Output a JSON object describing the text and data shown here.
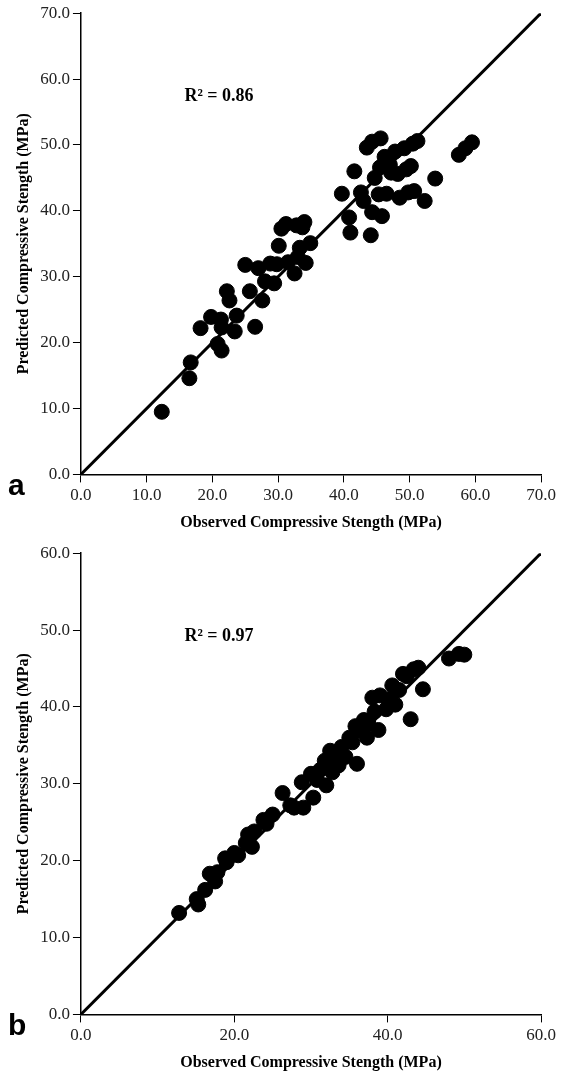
{
  "chart_data": [
    {
      "type": "scatter",
      "xlabel": "Observed Compressive Stength (MPa)",
      "ylabel": "Predicted Compressive Stength (MPa)",
      "annotations": [
        "R² = 0.86",
        "a"
      ],
      "xlim": [
        0,
        70
      ],
      "ylim": [
        0,
        70
      ],
      "xticks": [
        {
          "value": 0,
          "label": "0.0"
        },
        {
          "value": 10,
          "label": "10.0"
        },
        {
          "value": 20,
          "label": "20.0"
        },
        {
          "value": 30,
          "label": "30.0"
        },
        {
          "value": 40,
          "label": "40.0"
        },
        {
          "value": 50,
          "label": "50.0"
        },
        {
          "value": 60,
          "label": "60.0"
        },
        {
          "value": 70,
          "label": "70.0"
        }
      ],
      "yticks": [
        {
          "value": 0,
          "label": "0.0"
        },
        {
          "value": 10,
          "label": "10.0"
        },
        {
          "value": 20,
          "label": "20.0"
        },
        {
          "value": 30,
          "label": "30.0"
        },
        {
          "value": 40,
          "label": "40.0"
        },
        {
          "value": 50,
          "label": "50.0"
        },
        {
          "value": 60,
          "label": "60.0"
        },
        {
          "value": 70,
          "label": "70.0"
        }
      ],
      "grid": false,
      "legend": false,
      "marker": "circle",
      "series": [
        {
          "type": "scatter",
          "color": "#000000",
          "x": [
            12.3,
            16.5,
            16.7,
            18.2,
            19.8,
            20.8,
            21.4,
            21.3,
            21.4,
            22.2,
            22.6,
            23.4,
            23.7,
            25.0,
            25.7,
            26.5,
            27.0,
            27.6,
            28.0,
            28.8,
            29.4,
            29.8,
            30.1,
            30.5,
            31.2,
            31.5,
            32.5,
            32.8,
            33.0,
            33.3,
            33.7,
            34.0,
            34.2,
            34.9,
            39.7,
            40.8,
            41.0,
            41.6,
            42.6,
            43.0,
            43.5,
            44.1,
            44.3,
            44.7,
            44.3,
            45.3,
            45.6,
            45.5,
            45.8,
            46.2,
            46.5,
            47.0,
            47.2,
            47.8,
            48.2,
            48.5,
            49.2,
            49.5,
            49.8,
            50.2,
            50.5,
            50.7,
            51.2,
            52.3,
            53.9,
            57.5,
            58.5,
            59.5
          ],
          "values": [
            9.5,
            14.6,
            17.0,
            22.2,
            23.9,
            19.8,
            18.8,
            23.5,
            22.3,
            27.8,
            26.4,
            21.7,
            24.1,
            31.8,
            27.8,
            22.4,
            31.3,
            26.4,
            29.3,
            32.0,
            29.0,
            31.9,
            34.7,
            37.3,
            38.0,
            32.2,
            30.5,
            37.8,
            33.0,
            34.4,
            37.5,
            38.3,
            32.1,
            35.1,
            42.6,
            39.0,
            36.7,
            46.0,
            42.8,
            41.5,
            49.6,
            36.3,
            50.5,
            45.0,
            39.8,
            42.5,
            51.0,
            46.6,
            39.2,
            48.2,
            42.6,
            47.0,
            45.8,
            49.0,
            45.6,
            42.0,
            49.5,
            46.3,
            42.8,
            46.8,
            50.2,
            43.0,
            50.6,
            41.5,
            44.9,
            48.5,
            49.5,
            50.4
          ]
        },
        {
          "type": "line",
          "color": "#000000",
          "marker": "none",
          "line_style": "solid",
          "x": [
            0,
            70
          ],
          "values": [
            0,
            70
          ]
        }
      ]
    },
    {
      "type": "scatter",
      "xlabel": "Observed Compressive Stength (MPa)",
      "ylabel": "Predicted Compressive Stength (MPa)",
      "annotations": [
        "R² = 0.97",
        "b"
      ],
      "xlim": [
        0,
        60
      ],
      "ylim": [
        0,
        60
      ],
      "xticks": [
        {
          "value": 0,
          "label": "0.0"
        },
        {
          "value": 20,
          "label": "20.0"
        },
        {
          "value": 40,
          "label": "40.0"
        },
        {
          "value": 60,
          "label": "60.0"
        }
      ],
      "yticks": [
        {
          "value": 0,
          "label": "0.0"
        },
        {
          "value": 10,
          "label": "10.0"
        },
        {
          "value": 20,
          "label": "20.0"
        },
        {
          "value": 30,
          "label": "30.0"
        },
        {
          "value": 40,
          "label": "40.0"
        },
        {
          "value": 50,
          "label": "50.0"
        },
        {
          "value": 60,
          "label": "60.0"
        }
      ],
      "grid": false,
      "legend": false,
      "marker": "circle",
      "series": [
        {
          "type": "scatter",
          "color": "#000000",
          "x": [
            12.8,
            15.1,
            15.3,
            16.2,
            16.8,
            17.5,
            17.8,
            18.8,
            19.0,
            20.0,
            20.5,
            21.5,
            21.8,
            22.3,
            22.6,
            23.8,
            24.2,
            25.0,
            26.3,
            27.3,
            27.8,
            28.8,
            29.0,
            30.0,
            30.3,
            30.8,
            31.2,
            31.8,
            32.0,
            32.5,
            32.8,
            33.2,
            33.6,
            34.0,
            34.5,
            35.0,
            35.4,
            35.8,
            36.0,
            36.4,
            36.9,
            37.3,
            37.5,
            38.0,
            38.3,
            38.8,
            39.0,
            39.8,
            40.2,
            40.6,
            41.0,
            41.5,
            42.0,
            42.5,
            43.0,
            43.4,
            44.0,
            44.6,
            48.0,
            49.3,
            50.0
          ],
          "values": [
            13.2,
            15.0,
            14.3,
            16.2,
            18.3,
            17.3,
            18.5,
            20.3,
            19.8,
            21.0,
            20.7,
            22.3,
            23.4,
            21.8,
            23.8,
            25.3,
            24.8,
            26.0,
            28.8,
            27.2,
            26.9,
            30.2,
            26.9,
            31.3,
            28.2,
            30.5,
            31.8,
            33.0,
            29.8,
            34.3,
            31.5,
            33.8,
            32.4,
            34.8,
            33.5,
            36.0,
            35.4,
            37.5,
            32.6,
            37.0,
            38.3,
            36.0,
            37.8,
            41.2,
            39.4,
            37.0,
            41.5,
            39.7,
            41.0,
            42.8,
            40.3,
            42.2,
            44.3,
            44.0,
            38.4,
            44.9,
            45.1,
            42.3,
            46.3,
            46.9,
            46.8
          ]
        },
        {
          "type": "line",
          "color": "#000000",
          "marker": "none",
          "line_style": "solid",
          "x": [
            0,
            60
          ],
          "values": [
            0,
            60
          ]
        }
      ]
    }
  ]
}
